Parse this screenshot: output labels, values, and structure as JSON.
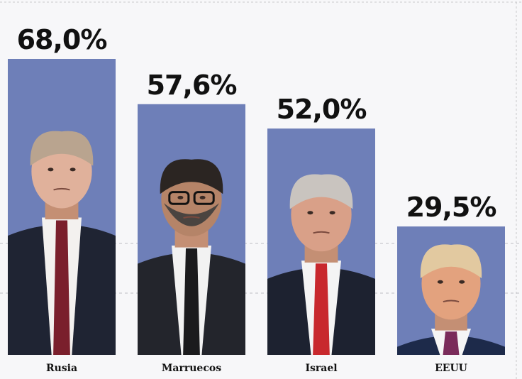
{
  "chart_data": {
    "type": "bar",
    "categories": [
      "Rusia",
      "Marruecos",
      "Israel",
      "EEUU"
    ],
    "values": [
      68.0,
      57.6,
      52.0,
      29.5
    ],
    "value_labels": [
      "68,0%",
      "57,6%",
      "52,0%",
      "29,5%"
    ],
    "unit": "%",
    "ylim": [
      0,
      68
    ],
    "grid": true,
    "bar_color": "#6e7fb8",
    "bar_images": [
      "putin-portrait",
      "mohammed-vi-portrait",
      "netanyahu-portrait",
      "trump-portrait"
    ]
  }
}
